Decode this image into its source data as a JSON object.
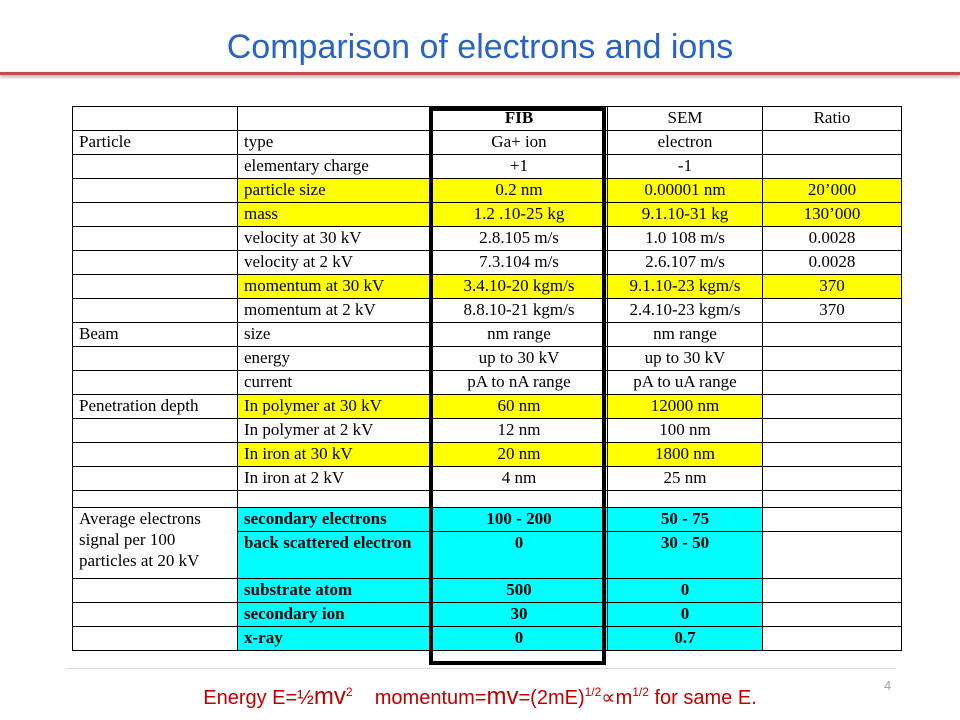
{
  "slide": {
    "title": "Comparison of electrons and ions",
    "page_number": "4",
    "formula": {
      "p1": "Energy E=½",
      "p2": "mv",
      "p3": "2",
      "p4": "    momentum=",
      "p5": "mv",
      "p6": "=(2mE)",
      "p7": "1/2",
      "p8": "∝m",
      "p9": "1/2",
      "p10": " for same E."
    }
  },
  "colors": {
    "title": "#2a63c8",
    "yellow": "#ffff00",
    "cyan": "#00ffff",
    "formula": "#c00000"
  },
  "table": {
    "header": [
      "",
      "",
      "FIB",
      "SEM",
      "Ratio"
    ],
    "rows": [
      [
        "Particle",
        "type",
        "Ga+ ion",
        "electron",
        ""
      ],
      [
        "",
        "elementary charge",
        "+1",
        "-1",
        ""
      ],
      [
        "",
        "particle size",
        "0.2 nm",
        "0.00001 nm",
        "20’000"
      ],
      [
        "",
        "mass",
        "1.2 .10-25 kg",
        "9.1.10-31 kg",
        "130’000"
      ],
      [
        "",
        "velocity at 30 kV",
        "2.8.105 m/s",
        "1.0 108 m/s",
        "0.0028"
      ],
      [
        "",
        "velocity at 2 kV",
        "7.3.104 m/s",
        "2.6.107 m/s",
        "0.0028"
      ],
      [
        "",
        "momentum at 30 kV",
        "3.4.10-20 kgm/s",
        "9.1.10-23 kgm/s",
        "370"
      ],
      [
        "",
        "momentum at 2 kV",
        "8.8.10-21 kgm/s",
        "2.4.10-23 kgm/s",
        "370"
      ],
      [
        "Beam",
        "size",
        "nm range",
        "nm range",
        ""
      ],
      [
        "",
        "energy",
        "up to 30 kV",
        "up to 30 kV",
        ""
      ],
      [
        "",
        "current",
        "pA to nA range",
        "pA to uA range",
        ""
      ],
      [
        "Penetration depth",
        "In polymer at 30 kV",
        "60 nm",
        "12000 nm",
        ""
      ],
      [
        "",
        "In polymer at 2 kV",
        "12 nm",
        "100 nm",
        ""
      ],
      [
        "",
        "In iron at 30 kV",
        "20 nm",
        "1800 nm",
        ""
      ],
      [
        "",
        "In iron at 2 kV",
        "4 nm",
        "25 nm",
        ""
      ],
      [
        "",
        "",
        "",
        "",
        ""
      ],
      [
        "Average electrons signal per 100 particles at 20 kV",
        "secondary electrons",
        "100 - 200",
        "50 - 75",
        ""
      ],
      [
        "",
        "back scattered electron",
        "0",
        "30 - 50",
        ""
      ],
      [
        "",
        "substrate atom",
        "500",
        "0",
        ""
      ],
      [
        "",
        "secondary ion",
        "30",
        "0",
        ""
      ],
      [
        "",
        "x-ray",
        "0",
        "0.7",
        ""
      ]
    ]
  }
}
